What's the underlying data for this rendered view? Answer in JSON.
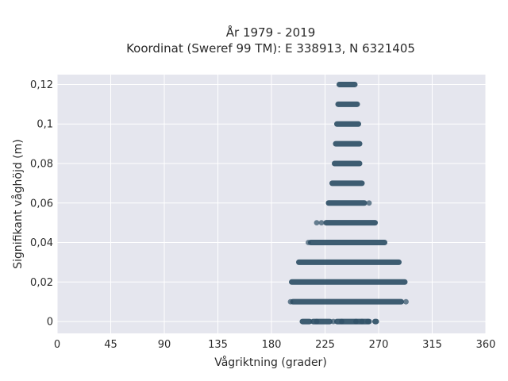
{
  "chart_data": {
    "type": "scatter",
    "title": "År 1979 - 2019",
    "subtitle": "Koordinat (Sweref 99 TM): E 338913, N 6321405",
    "xlabel": "Vågriktning (grader)",
    "ylabel": "Signifikant våghöjd (m)",
    "xlim": [
      0,
      360
    ],
    "ylim": [
      -0.006,
      0.125
    ],
    "xticks": [
      0,
      45,
      90,
      135,
      180,
      225,
      270,
      315,
      360
    ],
    "xtick_labels": [
      "0",
      "45",
      "90",
      "135",
      "180",
      "225",
      "270",
      "315",
      "360"
    ],
    "yticks": [
      0,
      0.02,
      0.04,
      0.06,
      0.08,
      0.1,
      0.12
    ],
    "ytick_labels": [
      "0",
      "0,02",
      "0,04",
      "0,06",
      "0,08",
      "0,1",
      "0,12"
    ],
    "grid": true,
    "background": "#e5e6ee",
    "marker_color": "#2f5066",
    "series": [
      {
        "bands": [
          {
            "y": 0.0,
            "segments": [
              [
                206,
                212
              ],
              [
                215,
                229
              ],
              [
                235,
                262
              ],
              [
                267,
                268
              ]
            ],
            "isolated_x": [
              218,
              232,
              239,
              251,
              256,
              261
            ]
          },
          {
            "y": 0.01,
            "segments": [
              [
                198,
                289
              ]
            ],
            "isolated_x": [
              196,
              293
            ]
          },
          {
            "y": 0.02,
            "segments": [
              [
                197,
                292
              ]
            ],
            "isolated_x": []
          },
          {
            "y": 0.03,
            "segments": [
              [
                203,
                287
              ]
            ],
            "isolated_x": []
          },
          {
            "y": 0.04,
            "segments": [
              [
                213,
                275
              ]
            ],
            "isolated_x": [
              211
            ]
          },
          {
            "y": 0.05,
            "segments": [
              [
                226,
                267
              ]
            ],
            "isolated_x": [
              218,
              222
            ]
          },
          {
            "y": 0.06,
            "segments": [
              [
                228,
                258
              ]
            ],
            "isolated_x": [
              262
            ]
          },
          {
            "y": 0.07,
            "segments": [
              [
                231,
                256
              ]
            ],
            "isolated_x": []
          },
          {
            "y": 0.08,
            "segments": [
              [
                233,
                254
              ]
            ],
            "isolated_x": []
          },
          {
            "y": 0.09,
            "segments": [
              [
                234,
                254
              ]
            ],
            "isolated_x": []
          },
          {
            "y": 0.1,
            "segments": [
              [
                235,
                253
              ]
            ],
            "isolated_x": []
          },
          {
            "y": 0.11,
            "segments": [
              [
                236,
                252
              ]
            ],
            "isolated_x": []
          },
          {
            "y": 0.12,
            "segments": [
              [
                237,
                250
              ]
            ],
            "isolated_x": []
          }
        ]
      }
    ]
  }
}
